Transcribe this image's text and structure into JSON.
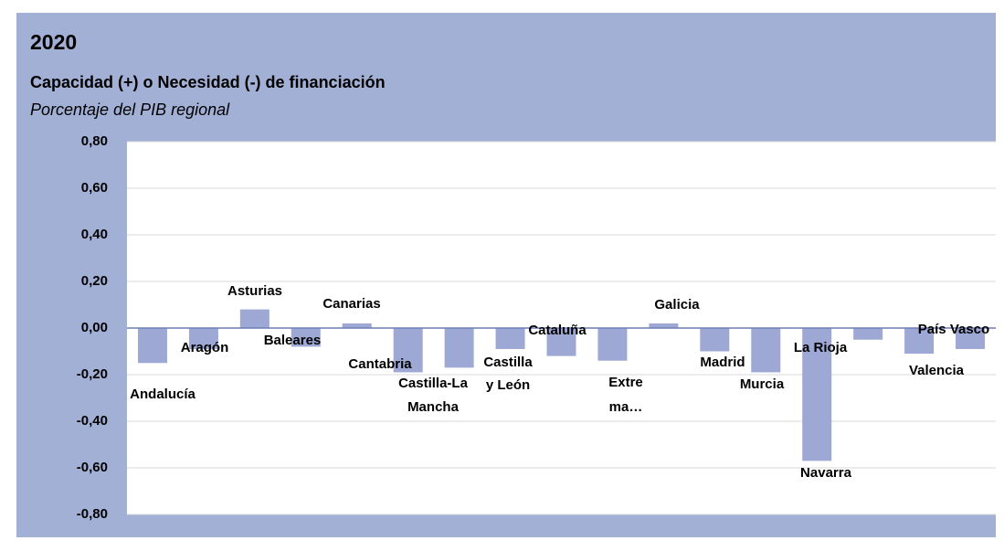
{
  "chart_data": {
    "type": "bar",
    "title": "2020",
    "subtitle": "Capacidad (+) o Necesidad (-) de financiación",
    "y_label": "Porcentaje del PIB regional",
    "categories": [
      "Andalucía",
      "Aragón",
      "Asturias",
      "Baleares",
      "Canarias",
      "Cantabria",
      "Castilla-La Mancha",
      "Castilla y León",
      "Cataluña",
      "Extre ma…",
      "Galicia",
      "Madrid",
      "Murcia",
      "Navarra",
      "La Rioja",
      "Valencia",
      "País Vasco"
    ],
    "values": [
      -0.15,
      -0.09,
      0.08,
      -0.08,
      0.02,
      -0.19,
      -0.17,
      -0.09,
      -0.12,
      -0.14,
      0.02,
      -0.1,
      -0.19,
      -0.57,
      -0.05,
      -0.11,
      -0.09
    ],
    "color": "#9ea8d4",
    "ylim": [
      -0.8,
      0.8
    ],
    "yticks": [
      {
        "value": 0.8,
        "label": "0,80"
      },
      {
        "value": 0.6,
        "label": "0,60"
      },
      {
        "value": 0.4,
        "label": "0,40"
      },
      {
        "value": 0.2,
        "label": "0,20"
      },
      {
        "value": 0,
        "label": "0,00"
      },
      {
        "value": -0.2,
        "label": "-0,20"
      },
      {
        "value": -0.4,
        "label": "-0,40"
      },
      {
        "value": -0.6,
        "label": "-0,60"
      },
      {
        "value": -0.8,
        "label": "-0,80"
      }
    ],
    "grid": true
  }
}
